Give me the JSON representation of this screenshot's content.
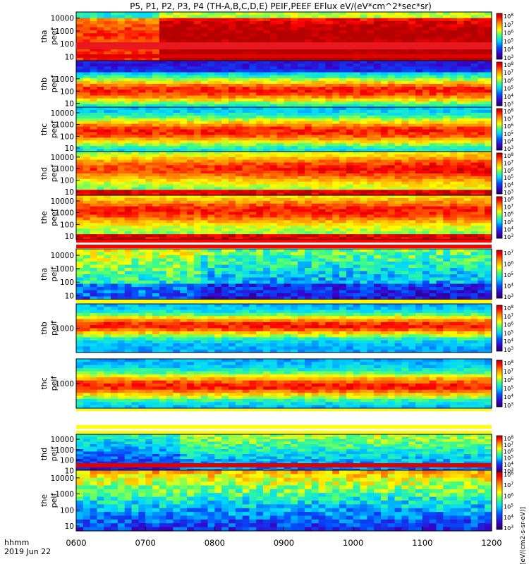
{
  "title": "P5, P1, P2, P3, P4 (TH-A,B,C,D,E) PEIF,PEEF EFlux eV/(eV*cm^2*sec*sr)",
  "colorbar_unit": "eV/(cm^2-s-sr-eV)",
  "colorbar_unit_bottom": "[eV/(cm2-s-sr-eV)]",
  "time_axis": {
    "label_line1": "hhmm",
    "label_line2": "2019 Jun 22",
    "ticks": [
      "0600",
      "0700",
      "0800",
      "0900",
      "1000",
      "1100",
      "1200"
    ]
  },
  "colors": {
    "black": "#000000",
    "red": "#ff0000",
    "yellow": "#ffff00",
    "white": "#ffffff"
  },
  "chart_data": {
    "type": "heatmap",
    "x": [
      "0600",
      "0700",
      "0800",
      "0900",
      "1000",
      "1100",
      "1200"
    ],
    "panels": [
      {
        "id": "tha-peef",
        "label1": "tha",
        "label2": "peef",
        "species": "electron",
        "yticks": [
          "10",
          "100",
          "1000",
          "10000"
        ],
        "yscale": "log",
        "cbar_ticks": [
          "10^3",
          "10^4",
          "10^5",
          "10^6",
          "10^7",
          "10^8"
        ]
      },
      {
        "id": "thb-peef",
        "label1": "thb",
        "label2": "peef",
        "species": "electron",
        "yticks": [
          "10",
          "100",
          "1000"
        ],
        "yscale": "log",
        "cbar_ticks": [
          "10^3",
          "10^4",
          "10^5",
          "10^6",
          "10^7",
          "10^8"
        ]
      },
      {
        "id": "thc-peef",
        "label1": "thc",
        "label2": "peef",
        "species": "electron",
        "yticks": [
          "10",
          "100",
          "1000",
          "10000"
        ],
        "yscale": "log",
        "cbar_ticks": [
          "10^3",
          "10^4",
          "10^5",
          "10^6",
          "10^7",
          "10^8"
        ]
      },
      {
        "id": "thd-peef",
        "label1": "thd",
        "label2": "peef",
        "species": "electron",
        "yticks": [
          "10",
          "100",
          "1000",
          "10000"
        ],
        "yscale": "log",
        "cbar_ticks": [
          "10^3",
          "10^4",
          "10^5",
          "10^6",
          "10^7",
          "10^8"
        ]
      },
      {
        "id": "the-peef",
        "label1": "the",
        "label2": "peef",
        "species": "electron",
        "yticks": [
          "10",
          "100",
          "1000",
          "10000"
        ],
        "yscale": "log",
        "cbar_ticks": [
          "10^3",
          "10^4",
          "10^5",
          "10^6",
          "10^7",
          "10^8"
        ]
      },
      {
        "id": "tha-peif",
        "label1": "tha",
        "label2": "peif",
        "species": "ion",
        "yticks": [
          "10",
          "100",
          "1000",
          "10000"
        ],
        "yscale": "log",
        "cbar_ticks": [
          "10^3",
          "10^4",
          "10^5",
          "10^6",
          "10^7"
        ]
      },
      {
        "id": "thb-peif",
        "label1": "thb",
        "label2": "peif",
        "species": "ion",
        "yticks": [
          "1000"
        ],
        "yscale": "log",
        "cbar_ticks": [
          "10^3",
          "10^4",
          "10^5",
          "10^6",
          "10^7",
          "10^8"
        ]
      },
      {
        "id": "thc-peif",
        "label1": "thc",
        "label2": "peif",
        "species": "ion",
        "yticks": [
          "1000"
        ],
        "yscale": "log",
        "cbar_ticks": [
          "10^3",
          "10^4",
          "10^5",
          "10^6",
          "10^7",
          "10^8"
        ]
      },
      {
        "id": "thd-peif",
        "label1": "thd",
        "label2": "peif",
        "species": "ion",
        "yticks": [
          "10",
          "100",
          "1000",
          "10000"
        ],
        "yscale": "log",
        "cbar_ticks": [
          "10^3",
          "10^4",
          "10^5",
          "10^6",
          "10^7",
          "10^8"
        ]
      },
      {
        "id": "the-peif",
        "label1": "the",
        "label2": "peif",
        "species": "ion",
        "yticks": [
          "10",
          "100",
          "1000",
          "10000"
        ],
        "yscale": "log",
        "cbar_ticks": [
          "10^3",
          "10^4",
          "10^5",
          "10^6",
          "10^7",
          "10^8"
        ]
      }
    ]
  }
}
